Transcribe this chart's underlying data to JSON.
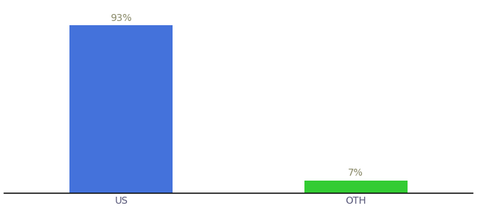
{
  "categories": [
    "US",
    "OTH"
  ],
  "values": [
    93,
    7
  ],
  "bar_colors": [
    "#4472db",
    "#33cc33"
  ],
  "value_labels": [
    "93%",
    "7%"
  ],
  "background_color": "#ffffff",
  "ylim": [
    0,
    105
  ],
  "bar_positions": [
    0.25,
    0.75
  ],
  "bar_width": 0.22,
  "xlim": [
    0.0,
    1.0
  ],
  "label_fontsize": 10,
  "tick_fontsize": 10,
  "label_color": "#888866"
}
